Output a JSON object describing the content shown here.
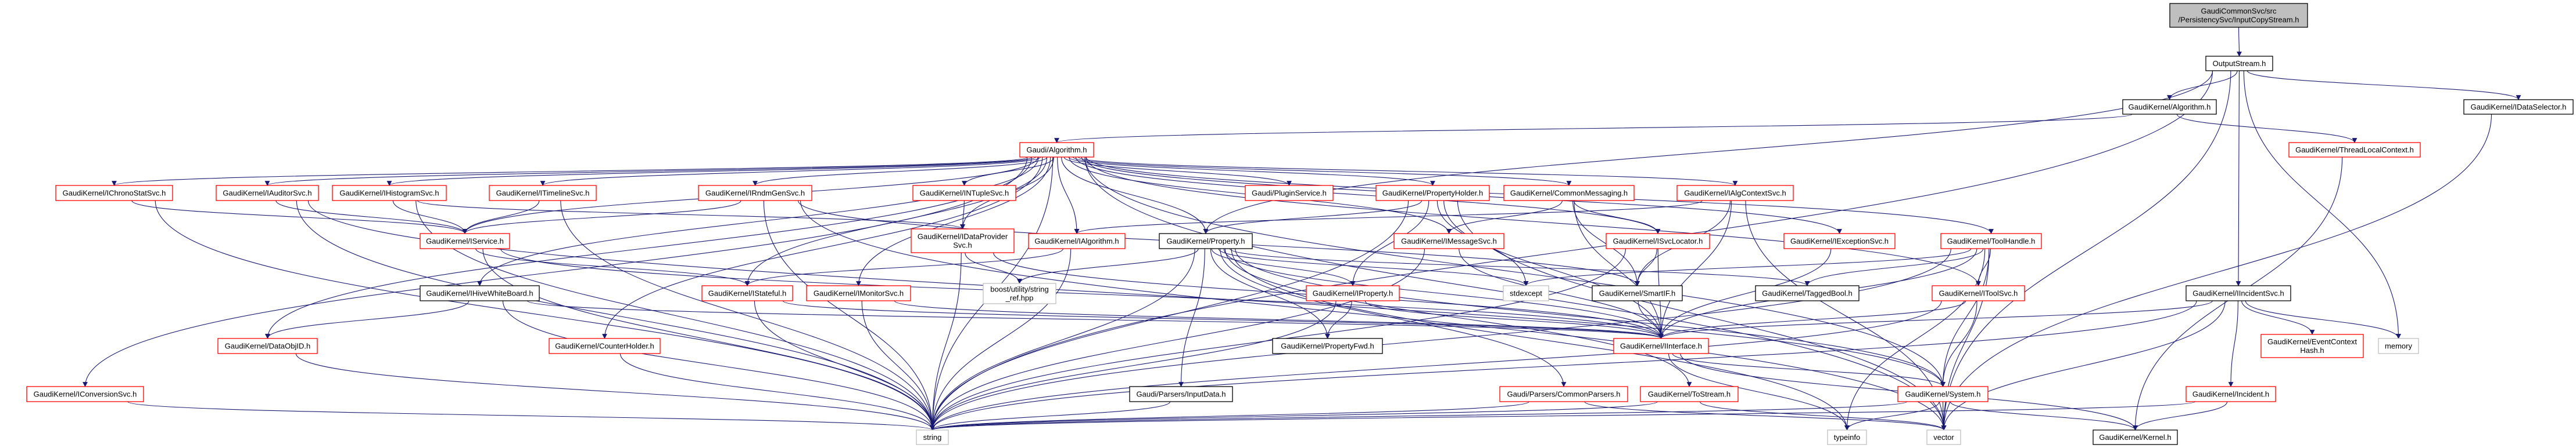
{
  "colors": {
    "edge": "#191970",
    "linked_border": "#ff0000",
    "documented_border": "#000000",
    "external_border": "#bfbfbf",
    "root_fill": "#bfbfbf"
  },
  "nodes": [
    {
      "id": "root",
      "label": [
        "GaudiCommonSvc/src",
        "/PersistencySvc/InputCopyStream.h"
      ],
      "kind": "root"
    },
    {
      "id": "OutputStream",
      "label": [
        "OutputStream.h"
      ],
      "kind": "black"
    },
    {
      "id": "GKAlgorithm",
      "label": [
        "GaudiKernel/Algorithm.h"
      ],
      "kind": "black"
    },
    {
      "id": "IDataSelector",
      "label": [
        "GaudiKernel/IDataSelector.h"
      ],
      "kind": "black"
    },
    {
      "id": "ThreadLocalContext",
      "label": [
        "GaudiKernel/ThreadLocalContext.h"
      ],
      "kind": "red"
    },
    {
      "id": "GAlgorithm",
      "label": [
        "Gaudi/Algorithm.h"
      ],
      "kind": "red"
    },
    {
      "id": "IChronoStatSvc",
      "label": [
        "GaudiKernel/IChronoStatSvc.h"
      ],
      "kind": "red"
    },
    {
      "id": "IAuditorSvc",
      "label": [
        "GaudiKernel/IAuditorSvc.h"
      ],
      "kind": "red"
    },
    {
      "id": "IHistogramSvc",
      "label": [
        "GaudiKernel/IHistogramSvc.h"
      ],
      "kind": "red"
    },
    {
      "id": "ITimelineSvc",
      "label": [
        "GaudiKernel/ITimelineSvc.h"
      ],
      "kind": "red"
    },
    {
      "id": "IRndmGenSvc",
      "label": [
        "GaudiKernel/IRndmGenSvc.h"
      ],
      "kind": "red"
    },
    {
      "id": "INTupleSvc",
      "label": [
        "GaudiKernel/INTupleSvc.h"
      ],
      "kind": "red"
    },
    {
      "id": "PluginService",
      "label": [
        "Gaudi/PluginService.h"
      ],
      "kind": "red"
    },
    {
      "id": "PropertyHolder",
      "label": [
        "GaudiKernel/PropertyHolder.h"
      ],
      "kind": "red"
    },
    {
      "id": "CommonMessaging",
      "label": [
        "GaudiKernel/CommonMessaging.h"
      ],
      "kind": "red"
    },
    {
      "id": "IAlgContextSvc",
      "label": [
        "GaudiKernel/IAlgContextSvc.h"
      ],
      "kind": "red"
    },
    {
      "id": "IService",
      "label": [
        "GaudiKernel/IService.h"
      ],
      "kind": "red"
    },
    {
      "id": "IDataProviderSvc",
      "label": [
        "GaudiKernel/IDataProvider",
        "Svc.h"
      ],
      "kind": "red"
    },
    {
      "id": "IAlgorithm",
      "label": [
        "GaudiKernel/IAlgorithm.h"
      ],
      "kind": "red"
    },
    {
      "id": "Property",
      "label": [
        "GaudiKernel/Property.h"
      ],
      "kind": "black"
    },
    {
      "id": "IMessageSvc",
      "label": [
        "GaudiKernel/IMessageSvc.h"
      ],
      "kind": "red"
    },
    {
      "id": "ISvcLocator",
      "label": [
        "GaudiKernel/ISvcLocator.h"
      ],
      "kind": "red"
    },
    {
      "id": "IExceptionSvc",
      "label": [
        "GaudiKernel/IExceptionSvc.h"
      ],
      "kind": "red"
    },
    {
      "id": "ToolHandle",
      "label": [
        "GaudiKernel/ToolHandle.h"
      ],
      "kind": "red"
    },
    {
      "id": "IHiveWhiteBoard",
      "label": [
        "GaudiKernel/IHiveWhiteBoard.h"
      ],
      "kind": "black"
    },
    {
      "id": "IStateful",
      "label": [
        "GaudiKernel/IStateful.h"
      ],
      "kind": "red"
    },
    {
      "id": "IMonitorSvc",
      "label": [
        "GaudiKernel/IMonitorSvc.h"
      ],
      "kind": "red"
    },
    {
      "id": "boost",
      "label": [
        "boost/utility/string",
        "_ref.hpp"
      ],
      "kind": "gray"
    },
    {
      "id": "IProperty",
      "label": [
        "GaudiKernel/IProperty.h"
      ],
      "kind": "red"
    },
    {
      "id": "stdexcept",
      "label": [
        "stdexcept"
      ],
      "kind": "gray"
    },
    {
      "id": "SmartIF",
      "label": [
        "GaudiKernel/SmartIF.h"
      ],
      "kind": "black"
    },
    {
      "id": "TaggedBool",
      "label": [
        "GaudiKernel/TaggedBool.h"
      ],
      "kind": "black"
    },
    {
      "id": "IToolSvc",
      "label": [
        "GaudiKernel/IToolSvc.h"
      ],
      "kind": "red"
    },
    {
      "id": "IIncidentSvc",
      "label": [
        "GaudiKernel/IIncidentSvc.h"
      ],
      "kind": "black"
    },
    {
      "id": "DataObjID",
      "label": [
        "GaudiKernel/DataObjID.h"
      ],
      "kind": "red"
    },
    {
      "id": "CounterHolder",
      "label": [
        "GaudiKernel/CounterHolder.h"
      ],
      "kind": "red"
    },
    {
      "id": "PropertyFwd",
      "label": [
        "GaudiKernel/PropertyFwd.h"
      ],
      "kind": "black"
    },
    {
      "id": "IInterface",
      "label": [
        "GaudiKernel/IInterface.h"
      ],
      "kind": "red"
    },
    {
      "id": "EventContextHash",
      "label": [
        "GaudiKernel/EventContext",
        "Hash.h"
      ],
      "kind": "red"
    },
    {
      "id": "memory",
      "label": [
        "memory"
      ],
      "kind": "gray"
    },
    {
      "id": "IConversionSvc",
      "label": [
        "GaudiKernel/IConversionSvc.h"
      ],
      "kind": "red"
    },
    {
      "id": "InputData",
      "label": [
        "Gaudi/Parsers/InputData.h"
      ],
      "kind": "black"
    },
    {
      "id": "CommonParsers",
      "label": [
        "Gaudi/Parsers/CommonParsers.h"
      ],
      "kind": "red"
    },
    {
      "id": "ToStream",
      "label": [
        "GaudiKernel/ToStream.h"
      ],
      "kind": "red"
    },
    {
      "id": "System",
      "label": [
        "GaudiKernel/System.h"
      ],
      "kind": "red"
    },
    {
      "id": "Incident",
      "label": [
        "GaudiKernel/Incident.h"
      ],
      "kind": "red"
    },
    {
      "id": "string",
      "label": [
        "string"
      ],
      "kind": "gray"
    },
    {
      "id": "typeinfo",
      "label": [
        "typeinfo"
      ],
      "kind": "gray"
    },
    {
      "id": "vector",
      "label": [
        "vector"
      ],
      "kind": "gray"
    },
    {
      "id": "Kernel",
      "label": [
        "GaudiKernel/Kernel.h"
      ],
      "kind": "black"
    }
  ],
  "edges": [
    [
      "root",
      "OutputStream"
    ],
    [
      "OutputStream",
      "GKAlgorithm"
    ],
    [
      "OutputStream",
      "IDataSelector"
    ],
    [
      "OutputStream",
      "IIncidentSvc"
    ],
    [
      "OutputStream",
      "Property"
    ],
    [
      "OutputStream",
      "string"
    ],
    [
      "OutputStream",
      "vector"
    ],
    [
      "OutputStream",
      "memory"
    ],
    [
      "GKAlgorithm",
      "GAlgorithm"
    ],
    [
      "GKAlgorithm",
      "ThreadLocalContext"
    ],
    [
      "ThreadLocalContext",
      "Kernel"
    ],
    [
      "IDataSelector",
      "vector"
    ],
    [
      "GAlgorithm",
      "IChronoStatSvc"
    ],
    [
      "GAlgorithm",
      "IAuditorSvc"
    ],
    [
      "GAlgorithm",
      "IHistogramSvc"
    ],
    [
      "GAlgorithm",
      "ITimelineSvc"
    ],
    [
      "GAlgorithm",
      "IRndmGenSvc"
    ],
    [
      "GAlgorithm",
      "INTupleSvc"
    ],
    [
      "GAlgorithm",
      "PluginService"
    ],
    [
      "GAlgorithm",
      "PropertyHolder"
    ],
    [
      "GAlgorithm",
      "CommonMessaging"
    ],
    [
      "GAlgorithm",
      "IAlgContextSvc"
    ],
    [
      "GAlgorithm",
      "IService"
    ],
    [
      "GAlgorithm",
      "IDataProviderSvc"
    ],
    [
      "GAlgorithm",
      "IAlgorithm"
    ],
    [
      "GAlgorithm",
      "Property"
    ],
    [
      "GAlgorithm",
      "IMessageSvc"
    ],
    [
      "GAlgorithm",
      "ISvcLocator"
    ],
    [
      "GAlgorithm",
      "IExceptionSvc"
    ],
    [
      "GAlgorithm",
      "ToolHandle"
    ],
    [
      "GAlgorithm",
      "IHiveWhiteBoard"
    ],
    [
      "GAlgorithm",
      "IMonitorSvc"
    ],
    [
      "GAlgorithm",
      "IStateful"
    ],
    [
      "GAlgorithm",
      "IToolSvc"
    ],
    [
      "GAlgorithm",
      "DataObjID"
    ],
    [
      "GAlgorithm",
      "CounterHolder"
    ],
    [
      "GAlgorithm",
      "IConversionSvc"
    ],
    [
      "GAlgorithm",
      "System"
    ],
    [
      "GAlgorithm",
      "string"
    ],
    [
      "GAlgorithm",
      "vector"
    ],
    [
      "IChronoStatSvc",
      "IService"
    ],
    [
      "IChronoStatSvc",
      "string"
    ],
    [
      "IAuditorSvc",
      "IService"
    ],
    [
      "IAuditorSvc",
      "string"
    ],
    [
      "IAuditorSvc",
      "System"
    ],
    [
      "IHistogramSvc",
      "IService"
    ],
    [
      "IHistogramSvc",
      "IDataProviderSvc"
    ],
    [
      "IHistogramSvc",
      "string"
    ],
    [
      "ITimelineSvc",
      "IService"
    ],
    [
      "ITimelineSvc",
      "string"
    ],
    [
      "IRndmGenSvc",
      "IService"
    ],
    [
      "IRndmGenSvc",
      "string"
    ],
    [
      "IRndmGenSvc",
      "vector"
    ],
    [
      "IRndmGenSvc",
      "SmartIF"
    ],
    [
      "INTupleSvc",
      "IDataProviderSvc"
    ],
    [
      "IService",
      "IStateful"
    ],
    [
      "IService",
      "IInterface"
    ],
    [
      "IService",
      "string"
    ],
    [
      "IDataProviderSvc",
      "boost"
    ],
    [
      "IDataProviderSvc",
      "IInterface"
    ],
    [
      "IDataProviderSvc",
      "string"
    ],
    [
      "IAlgorithm",
      "IStateful"
    ],
    [
      "IAlgorithm",
      "string"
    ],
    [
      "Property",
      "boost"
    ],
    [
      "Property",
      "IProperty"
    ],
    [
      "Property",
      "PropertyFwd"
    ],
    [
      "Property",
      "IInterface"
    ],
    [
      "Property",
      "InputData"
    ],
    [
      "Property",
      "CommonParsers"
    ],
    [
      "Property",
      "ToStream"
    ],
    [
      "Property",
      "stdexcept"
    ],
    [
      "Property",
      "TaggedBool"
    ],
    [
      "Property",
      "typeinfo"
    ],
    [
      "Property",
      "string"
    ],
    [
      "Property",
      "System"
    ],
    [
      "PropertyHolder",
      "Property"
    ],
    [
      "PropertyHolder",
      "IProperty"
    ],
    [
      "PropertyHolder",
      "IInterface"
    ],
    [
      "PropertyHolder",
      "stdexcept"
    ],
    [
      "PropertyHolder",
      "vector"
    ],
    [
      "PropertyHolder",
      "string"
    ],
    [
      "CommonMessaging",
      "IMessageSvc"
    ],
    [
      "CommonMessaging",
      "ISvcLocator"
    ],
    [
      "CommonMessaging",
      "SmartIF"
    ],
    [
      "CommonMessaging",
      "IInterface"
    ],
    [
      "IAlgContextSvc",
      "IAlgorithm"
    ],
    [
      "IAlgContextSvc",
      "IInterface"
    ],
    [
      "IAlgContextSvc",
      "SmartIF"
    ],
    [
      "IAlgContextSvc",
      "vector"
    ],
    [
      "IMessageSvc",
      "IInterface"
    ],
    [
      "IMessageSvc",
      "string"
    ],
    [
      "ISvcLocator",
      "SmartIF"
    ],
    [
      "ISvcLocator",
      "IInterface"
    ],
    [
      "ISvcLocator",
      "string"
    ],
    [
      "IExceptionSvc",
      "IInterface"
    ],
    [
      "ToolHandle",
      "IToolSvc"
    ],
    [
      "ToolHandle",
      "IInterface"
    ],
    [
      "ToolHandle",
      "TaggedBool"
    ],
    [
      "ToolHandle",
      "stdexcept"
    ],
    [
      "ToolHandle",
      "System"
    ],
    [
      "ToolHandle",
      "vector"
    ],
    [
      "ToolHandle",
      "string"
    ],
    [
      "ToolHandle",
      "typeinfo"
    ],
    [
      "IToolSvc",
      "IInterface"
    ],
    [
      "IToolSvc",
      "System"
    ],
    [
      "IToolSvc",
      "string"
    ],
    [
      "IIncidentSvc",
      "IInterface"
    ],
    [
      "IIncidentSvc",
      "Incident"
    ],
    [
      "IIncidentSvc",
      "EventContextHash"
    ],
    [
      "IIncidentSvc",
      "memory"
    ],
    [
      "IIncidentSvc",
      "string"
    ],
    [
      "IIncidentSvc",
      "vector"
    ],
    [
      "IHiveWhiteBoard",
      "DataObjID"
    ],
    [
      "IHiveWhiteBoard",
      "IInterface"
    ],
    [
      "IHiveWhiteBoard",
      "string"
    ],
    [
      "IStateful",
      "IInterface"
    ],
    [
      "IStateful",
      "string"
    ],
    [
      "IMonitorSvc",
      "IInterface"
    ],
    [
      "IMonitorSvc",
      "string"
    ],
    [
      "IProperty",
      "IInterface"
    ],
    [
      "IProperty",
      "PropertyFwd"
    ],
    [
      "IProperty",
      "string"
    ],
    [
      "SmartIF",
      "IInterface"
    ],
    [
      "IInterface",
      "System"
    ],
    [
      "IInterface",
      "Kernel"
    ],
    [
      "IInterface",
      "typeinfo"
    ],
    [
      "DataObjID",
      "string"
    ],
    [
      "CounterHolder",
      "string"
    ],
    [
      "IConversionSvc",
      "string"
    ],
    [
      "InputData",
      "string"
    ],
    [
      "CommonParsers",
      "string"
    ],
    [
      "CommonParsers",
      "vector"
    ],
    [
      "ToStream",
      "string"
    ],
    [
      "ToStream",
      "vector"
    ],
    [
      "System",
      "Kernel"
    ],
    [
      "System",
      "vector"
    ],
    [
      "System",
      "string"
    ],
    [
      "System",
      "typeinfo"
    ],
    [
      "Incident",
      "Kernel"
    ],
    [
      "Incident",
      "string"
    ]
  ]
}
